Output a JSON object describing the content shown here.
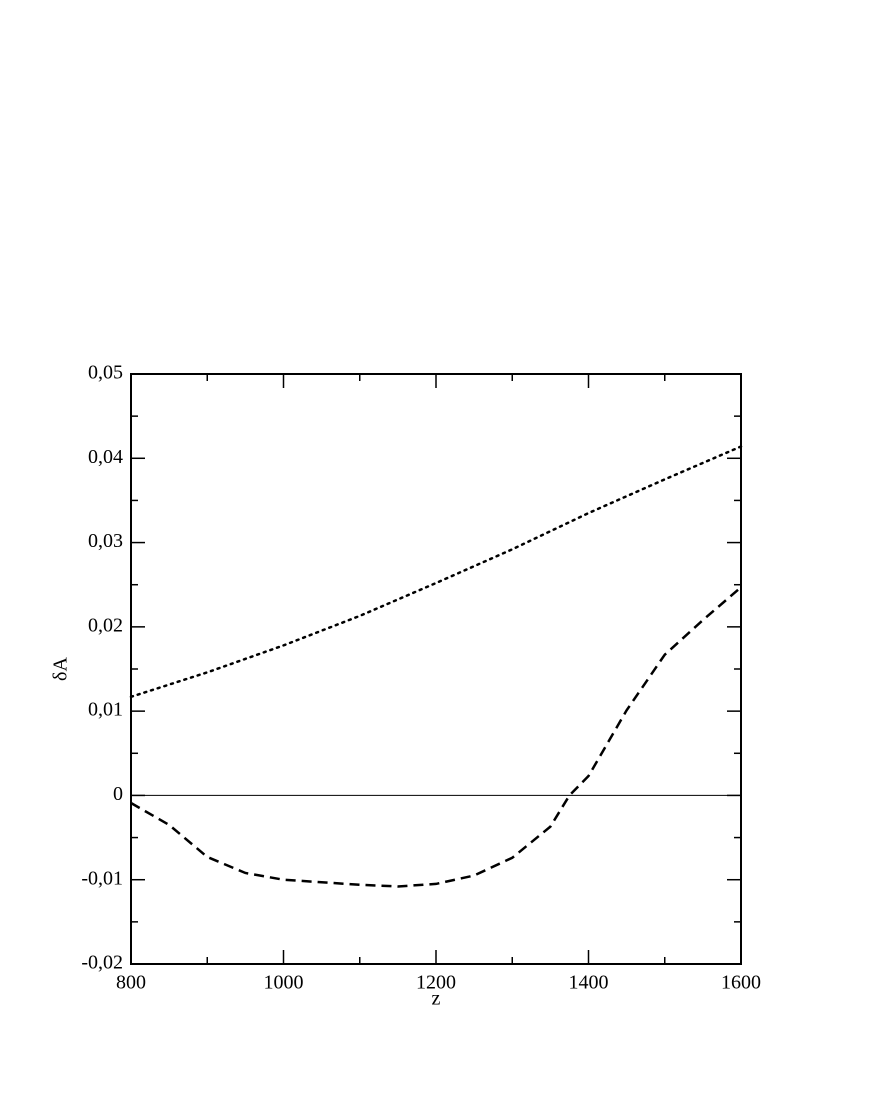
{
  "chart_data": {
    "type": "line",
    "xlabel": "z",
    "ylabel": "δA",
    "xlim": [
      800,
      1600
    ],
    "ylim": [
      -0.02,
      0.05
    ],
    "xticks": [
      800,
      1000,
      1200,
      1400,
      1600
    ],
    "xminorticks": [
      900,
      1100,
      1300,
      1500
    ],
    "yticks": [
      {
        "value": -0.02,
        "label": "-0,02"
      },
      {
        "value": -0.01,
        "label": "-0,01"
      },
      0,
      {
        "value": 0.01,
        "label": "0,01"
      },
      {
        "value": 0.02,
        "label": "0,02"
      },
      {
        "value": 0.03,
        "label": "0,03"
      },
      {
        "value": 0.04,
        "label": "0,04"
      },
      {
        "value": 0.05,
        "label": "0,05"
      }
    ],
    "yminorticks": [
      -0.015,
      -0.005,
      0.005,
      0.015,
      0.025,
      0.035,
      0.045
    ],
    "reference_line": 0,
    "series": [
      {
        "color": "#000000",
        "style": "dotted",
        "x": [
          800,
          900,
          1000,
          1100,
          1200,
          1300,
          1400,
          1500,
          1600
        ],
        "values": [
          0.0117,
          0.0146,
          0.0178,
          0.0213,
          0.0252,
          0.0292,
          0.0335,
          0.0375,
          0.0414
        ]
      },
      {
        "color": "#000000",
        "style": "dashed",
        "x": [
          800,
          850,
          900,
          950,
          1000,
          1100,
          1150,
          1200,
          1250,
          1300,
          1350,
          1375,
          1400,
          1450,
          1500,
          1550,
          1600
        ],
        "values": [
          -0.0009,
          -0.0035,
          -0.0073,
          -0.0092,
          -0.01,
          -0.0106,
          -0.0108,
          -0.0105,
          -0.0095,
          -0.0074,
          -0.0037,
          0,
          0.0023,
          0.0101,
          0.0167,
          0.0208,
          0.0247
        ]
      }
    ]
  }
}
